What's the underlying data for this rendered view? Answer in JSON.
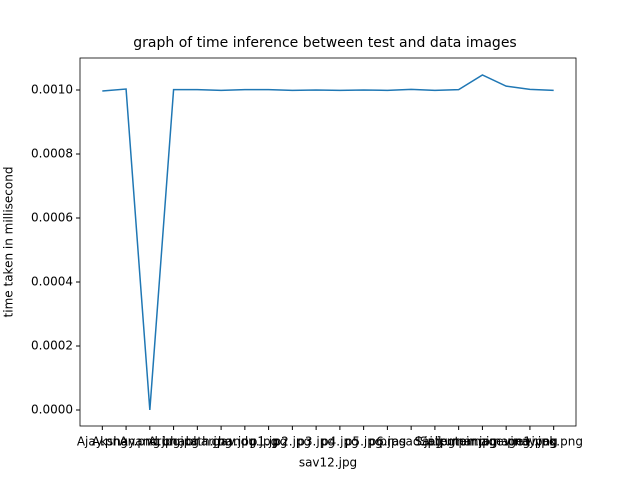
{
  "chart_data": {
    "type": "line",
    "title": "graph of time inference between test and data images",
    "x_label": "sav12.jpg",
    "y_label": "time taken in millisecond",
    "categories": [
      "Ajay.png",
      "Akshay.png",
      "Anand.jpg",
      "Arun.jpg",
      "bharath.jpg",
      "bhargav.jpg",
      "chandu.jpg",
      "p1.jpg",
      "p2.jpg",
      "p3.jpg",
      "p4.jpg",
      "p5.jpg",
      "p6.jpg",
      "prasad.jpg",
      "Sai.jpg",
      "Saikumar.jpg",
      "tempimage.png",
      "tempimage1.png",
      "vinay.jpg",
      "vivek.png"
    ],
    "series": [
      {
        "name": "time",
        "color": "#1f77b4",
        "values": [
          0.000997,
          0.001003,
          0.0,
          0.001001,
          0.001001,
          0.000999,
          0.001001,
          0.001001,
          0.000999,
          0.001,
          0.000999,
          0.001,
          0.000999,
          0.001002,
          0.000999,
          0.001001,
          0.001047,
          0.001012,
          0.001002,
          0.000999
        ]
      }
    ],
    "ylim": [
      -5e-05,
      0.0011
    ],
    "yticks": [
      {
        "value": 0,
        "label": "0.0000"
      },
      {
        "value": 0.0002,
        "label": "0.0002"
      },
      {
        "value": 0.0004,
        "label": "0.0004"
      },
      {
        "value": 0.0006,
        "label": "0.0006"
      },
      {
        "value": 0.0008,
        "label": "0.0008"
      },
      {
        "value": 0.001,
        "label": "0.0010"
      }
    ],
    "grid": false
  }
}
